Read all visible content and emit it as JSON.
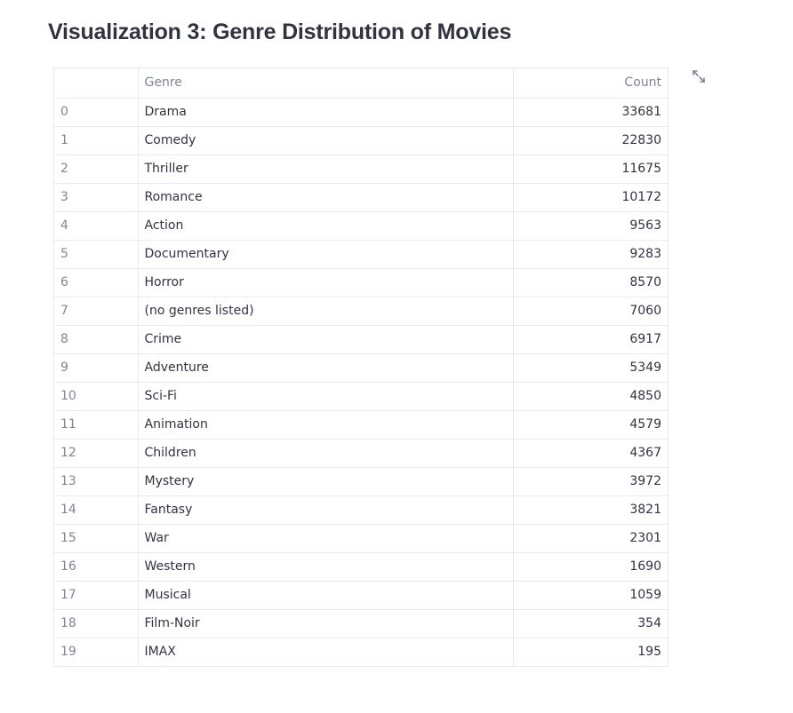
{
  "page": {
    "title": "Visualization 3: Genre Distribution of Movies"
  },
  "table": {
    "columns": {
      "index": "",
      "genre": "Genre",
      "count": "Count"
    },
    "rows": [
      {
        "index": "0",
        "genre": "Drama",
        "count": "33681"
      },
      {
        "index": "1",
        "genre": "Comedy",
        "count": "22830"
      },
      {
        "index": "2",
        "genre": "Thriller",
        "count": "11675"
      },
      {
        "index": "3",
        "genre": "Romance",
        "count": "10172"
      },
      {
        "index": "4",
        "genre": "Action",
        "count": "9563"
      },
      {
        "index": "5",
        "genre": "Documentary",
        "count": "9283"
      },
      {
        "index": "6",
        "genre": "Horror",
        "count": "8570"
      },
      {
        "index": "7",
        "genre": "(no genres listed)",
        "count": "7060"
      },
      {
        "index": "8",
        "genre": "Crime",
        "count": "6917"
      },
      {
        "index": "9",
        "genre": "Adventure",
        "count": "5349"
      },
      {
        "index": "10",
        "genre": "Sci-Fi",
        "count": "4850"
      },
      {
        "index": "11",
        "genre": "Animation",
        "count": "4579"
      },
      {
        "index": "12",
        "genre": "Children",
        "count": "4367"
      },
      {
        "index": "13",
        "genre": "Mystery",
        "count": "3972"
      },
      {
        "index": "14",
        "genre": "Fantasy",
        "count": "3821"
      },
      {
        "index": "15",
        "genre": "War",
        "count": "2301"
      },
      {
        "index": "16",
        "genre": "Western",
        "count": "1690"
      },
      {
        "index": "17",
        "genre": "Musical",
        "count": "1059"
      },
      {
        "index": "18",
        "genre": "Film-Noir",
        "count": "354"
      },
      {
        "index": "19",
        "genre": "IMAX",
        "count": "195"
      }
    ]
  },
  "toolbar": {
    "fullscreen_icon": "expand-icon"
  },
  "colors": {
    "text": "#31333f",
    "muted": "#808495",
    "border": "#e6e9ef"
  }
}
